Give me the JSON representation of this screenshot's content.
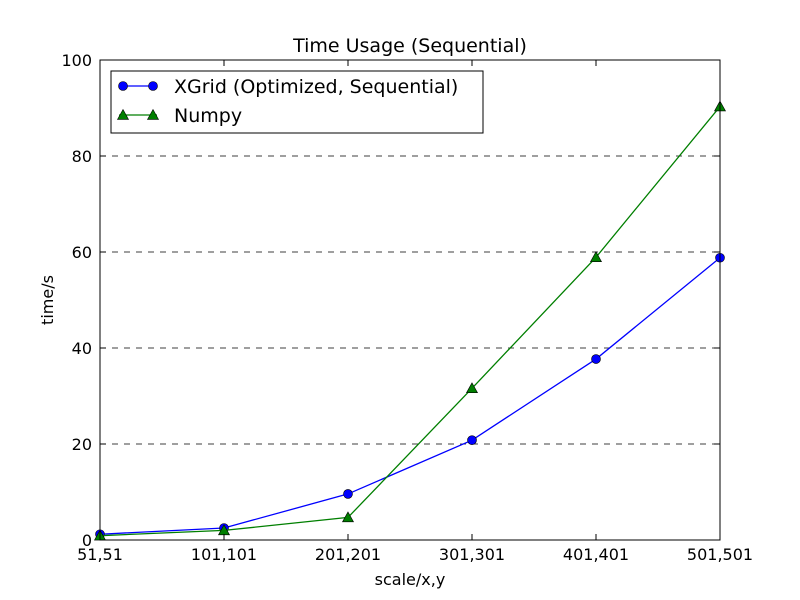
{
  "chart_data": {
    "type": "line",
    "title": "Time Usage (Sequential)",
    "xlabel": "scale/x,y",
    "ylabel": "time/s",
    "categories": [
      "51,51",
      "101,101",
      "201,201",
      "301,301",
      "401,401",
      "501,501"
    ],
    "ylim": [
      0,
      100
    ],
    "yticks": [
      "0",
      "20",
      "40",
      "60",
      "80",
      "100"
    ],
    "grid": "horizontal dashed",
    "legend_position": "top-left",
    "series": [
      {
        "name": "XGrid (Optimized, Sequential)",
        "values": [
          1.2,
          2.5,
          9.6,
          20.8,
          37.7,
          58.8
        ],
        "color": "#0000ff",
        "marker": "circle"
      },
      {
        "name": "Numpy",
        "values": [
          0.9,
          2.0,
          4.7,
          31.6,
          58.9,
          90.3
        ],
        "color": "#007f00",
        "marker": "triangle"
      }
    ]
  }
}
